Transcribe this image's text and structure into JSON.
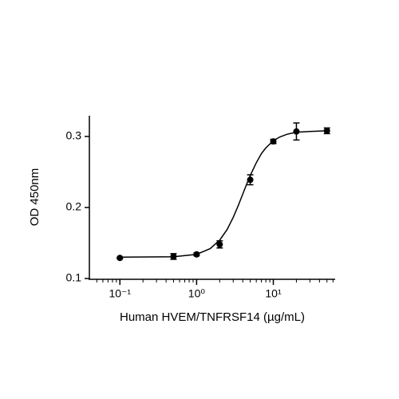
{
  "chart_data": {
    "type": "scatter",
    "x_label": "Human HVEM/TNFRSF14 (µg/mL)",
    "y_label": "OD 450nm",
    "xscale": "log",
    "xlim": [
      0.04,
      64
    ],
    "ylim": [
      0.1,
      0.33
    ],
    "xticks": [
      {
        "value": 0.1,
        "label": "10⁻¹"
      },
      {
        "value": 1,
        "label": "10⁰"
      },
      {
        "value": 10,
        "label": "10¹"
      }
    ],
    "xminorticks": [
      0.05,
      0.06,
      0.07,
      0.08,
      0.09,
      0.2,
      0.3,
      0.4,
      0.5,
      0.6,
      0.7,
      0.8,
      0.9,
      2,
      3,
      4,
      5,
      6,
      7,
      8,
      9,
      20,
      30,
      40,
      50,
      60
    ],
    "yticks": [
      0.1,
      0.2,
      0.3
    ],
    "series": [
      {
        "type": "scatter",
        "color": "#000000",
        "x": [
          0.1,
          0.5,
          1,
          2,
          5,
          10,
          20,
          50
        ],
        "values": [
          0.129,
          0.131,
          0.134,
          0.148,
          0.239,
          0.293,
          0.307,
          0.308
        ],
        "errors": [
          0.001,
          0.004,
          0.002,
          0.005,
          0.007,
          0.003,
          0.012,
          0.004
        ]
      },
      {
        "type": "line",
        "color": "#000000",
        "x": [
          0.1,
          0.5,
          1,
          1.5,
          2,
          2.5,
          3,
          3.5,
          4,
          4.5,
          5,
          6,
          7,
          8,
          10,
          12,
          15,
          20,
          30,
          50
        ],
        "values": [
          0.13,
          0.1306,
          0.134,
          0.142,
          0.154,
          0.169,
          0.186,
          0.203,
          0.219,
          0.233,
          0.245,
          0.263,
          0.276,
          0.284,
          0.294,
          0.299,
          0.303,
          0.306,
          0.307,
          0.308
        ]
      }
    ]
  }
}
